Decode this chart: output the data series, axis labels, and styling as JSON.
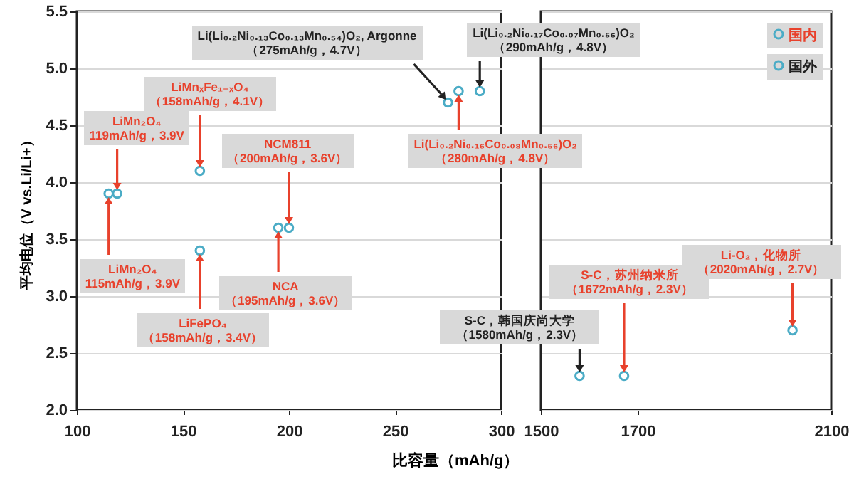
{
  "chart_data": [
    {
      "type": "scatter",
      "ylabel": "平均电位（V vs.Li/Li+）",
      "xlabel": "比容量（mAh/g）",
      "xlim": [
        100,
        300
      ],
      "xticks": [
        100,
        150,
        200,
        250,
        300
      ],
      "ylim": [
        2,
        5.5
      ],
      "yticks": [
        {
          "value": 2,
          "label": "2.0"
        },
        {
          "value": 2.5,
          "label": "2.5"
        },
        {
          "value": 3,
          "label": "3.0"
        },
        {
          "value": 3.5,
          "label": "3.5"
        },
        {
          "value": 4,
          "label": "4.0"
        },
        {
          "value": 4.5,
          "label": "4.5"
        },
        {
          "value": 5,
          "label": "5.0"
        },
        {
          "value": 5.5,
          "label": "5.5"
        }
      ],
      "grid": "y",
      "marker": "circle",
      "series": [
        {
          "color": "#4bacc6",
          "x": [
            119,
            115,
            158,
            158,
            200,
            195,
            280
          ],
          "values": [
            3.9,
            3.9,
            4.1,
            3.4,
            3.6,
            3.6,
            4.8
          ]
        },
        {
          "color": "#4bacc6",
          "x": [
            275,
            290
          ],
          "values": [
            4.7,
            4.8
          ]
        }
      ],
      "annotations": [
        {
          "text": "LiMn₂O₄\n119mAh/g，3.9V",
          "x": 119,
          "y": 3.9
        },
        {
          "text": "LiMn₂O₄\n115mAh/g，3.9V",
          "x": 115,
          "y": 3.9
        },
        {
          "text": "LiMnₓFe₁₋ₓO₄\n（158mAh/g，4.1V）",
          "x": 158,
          "y": 4.1
        },
        {
          "text": "LiFePO₄\n（158mAh/g，3.4V）",
          "x": 158,
          "y": 3.4
        },
        {
          "text": "NCM811\n（200mAh/g，3.6V）",
          "x": 200,
          "y": 3.6
        },
        {
          "text": "NCA\n（195mAh/g，3.6V）",
          "x": 195,
          "y": 3.6
        },
        {
          "text": "Li(Li₀.₂Ni₀.₁₃Co₀.₁₃Mn₀.₅₄)O₂, Argonne\n（275mAh/g，4.7V）",
          "x": 275,
          "y": 4.7
        },
        {
          "text": "Li(Li₀.₂Ni₀.₁₇Co₀.₀₇Mn₀.₅₆)O₂\n（290mAh/g，4.8V）",
          "x": 290,
          "y": 4.8
        },
        {
          "text": "Li(Li₀.₂Ni₀.₁₆Co₀.₀₈Mn₀.₅₆)O₂\n（280mAh/g，4.8V）",
          "x": 280,
          "y": 4.8
        }
      ]
    },
    {
      "type": "scatter",
      "xlim": [
        1500,
        2100
      ],
      "xticks": [
        1500,
        1700,
        2100
      ],
      "ylim": [
        2,
        5.5
      ],
      "yticks": [
        2,
        2.5,
        3,
        3.5,
        4,
        4.5,
        5,
        5.5
      ],
      "grid": "y",
      "marker": "circle",
      "tick_labels": "x",
      "legend": "top right",
      "series": [
        {
          "name": "国内",
          "color": "#4bacc6",
          "x": [
            1672,
            2020
          ],
          "values": [
            2.3,
            2.7
          ]
        },
        {
          "name": "国外",
          "color": "#4bacc6",
          "x": [
            1580
          ],
          "values": [
            2.3
          ]
        }
      ],
      "annotations": [
        {
          "text": "S-C，韩国庆尚大学（1580mAh/g，2.3V）",
          "x": 1580,
          "y": 2.3
        },
        {
          "text": "S-C，苏州纳米所（1672mAh/g，2.3V）",
          "x": 1672,
          "y": 2.3
        },
        {
          "text": "Li-O₂，化物所（2020mAh/g，2.7V）",
          "x": 2020,
          "y": 2.7
        }
      ]
    }
  ]
}
